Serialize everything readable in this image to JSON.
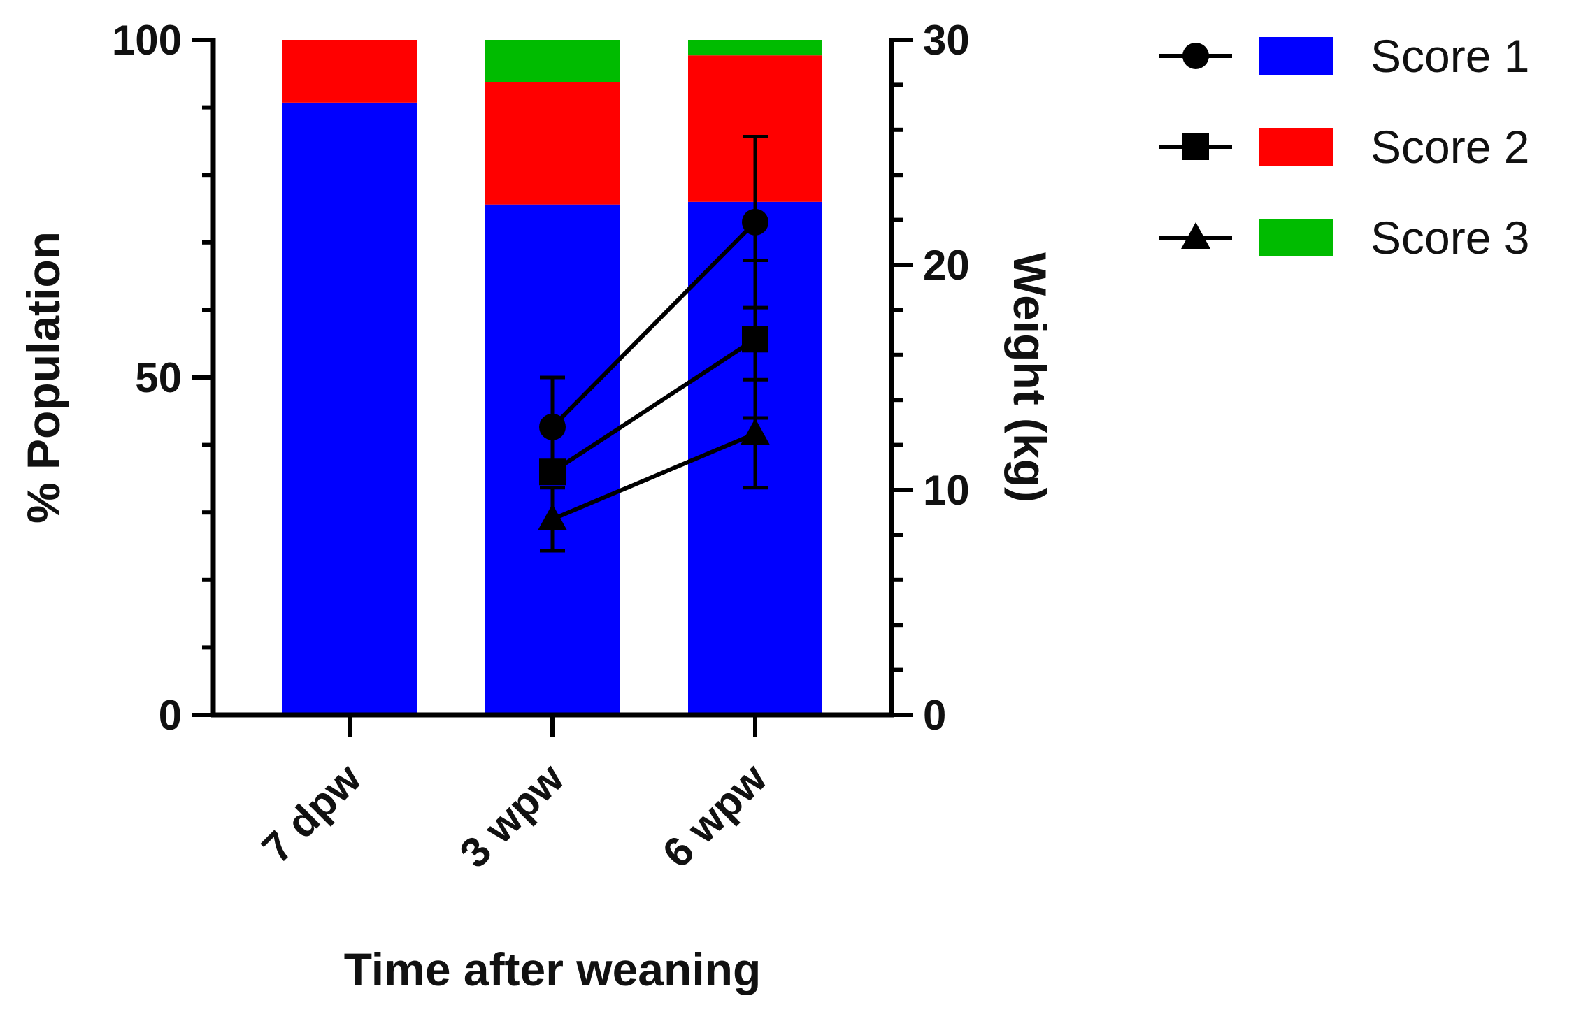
{
  "chart_data": {
    "type": "bar",
    "subtype": "stacked-bar-with-line-overlay",
    "title": "",
    "categories": [
      "7 dpw",
      "3 wpw",
      "6 wpw"
    ],
    "xlabel": "Time after weaning",
    "ylabel": "% Population",
    "ylim": [
      0,
      100
    ],
    "yticks": [
      0,
      50,
      100
    ],
    "y2label": "Weight (kg)",
    "y2lim": [
      0,
      30
    ],
    "y2ticks": [
      0,
      10,
      20,
      30
    ],
    "bar_series": [
      {
        "name": "Score 1",
        "color": "#0000ff",
        "values": [
          90.7,
          75.6,
          76.0
        ]
      },
      {
        "name": "Score 2",
        "color": "#ff0000",
        "values": [
          9.3,
          18.1,
          21.7
        ]
      },
      {
        "name": "Score 3",
        "color": "#00bb00",
        "values": [
          0.0,
          6.3,
          2.3
        ]
      }
    ],
    "line_series": [
      {
        "name": "Score 1",
        "marker": "circle",
        "x": [
          "3 wpw",
          "6 wpw"
        ],
        "values": [
          12.8,
          21.9
        ],
        "error": [
          2.2,
          3.8
        ]
      },
      {
        "name": "Score 2",
        "marker": "square",
        "x": [
          "3 wpw",
          "6 wpw"
        ],
        "values": [
          10.8,
          16.7
        ],
        "error": [
          0,
          3.5
        ]
      },
      {
        "name": "Score 3",
        "marker": "triangle",
        "x": [
          "3 wpw",
          "6 wpw"
        ],
        "values": [
          8.7,
          12.5
        ],
        "error": [
          1.4,
          2.4
        ]
      }
    ],
    "legend": {
      "position": "top-right",
      "entries": [
        "Score 1",
        "Score 2",
        "Score 3"
      ]
    }
  }
}
